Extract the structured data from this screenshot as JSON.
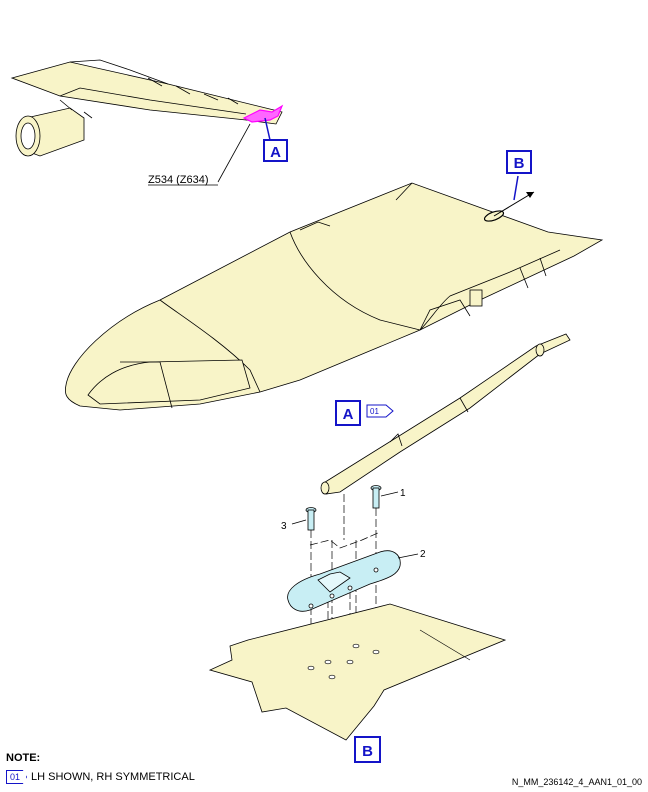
{
  "diagram": {
    "zone_label": "Z534 (Z634)",
    "view_a": "A",
    "view_b": "B",
    "effectivity_tag": "01",
    "items": [
      "1",
      "2",
      "3"
    ],
    "colors": {
      "part_fill": "#f8f4c8",
      "seal_fill": "#c8eef4",
      "highlight": "#ff00ff",
      "callout_blue": "#1414c8"
    }
  },
  "note": {
    "title": "NOTE:",
    "tag": "01",
    "text": "LH SHOWN, RH SYMMETRICAL"
  },
  "figure_id": "N_MM_236142_4_AAN1_01_00"
}
